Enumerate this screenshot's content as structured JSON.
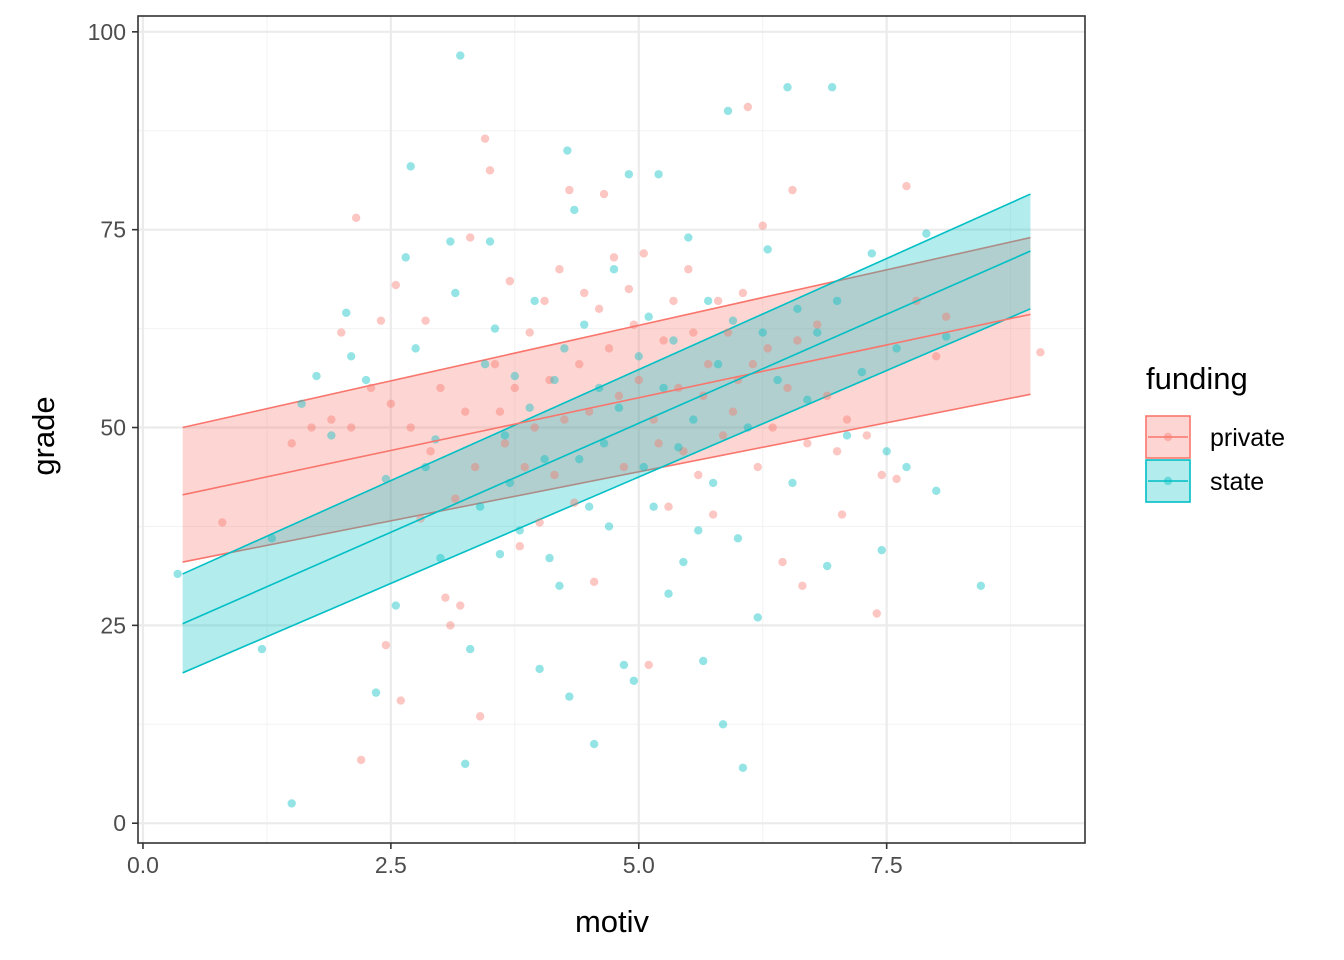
{
  "chart_data": {
    "type": "scatter",
    "xlabel": "motiv",
    "ylabel": "grade",
    "xlim": [
      -0.05,
      9.5
    ],
    "ylim": [
      -2.5,
      102
    ],
    "x_ticks": [
      0,
      2.5,
      5,
      7.5
    ],
    "x_tick_labels": [
      "0.0",
      "2.5",
      "5.0",
      "7.5"
    ],
    "y_ticks": [
      0,
      25,
      50,
      75,
      100
    ],
    "y_tick_labels": [
      "0",
      "25",
      "50",
      "75",
      "100"
    ],
    "grid": true,
    "legend": {
      "title": "funding",
      "position": "right"
    },
    "series": [
      {
        "name": "private",
        "color": "#F8766D",
        "points": [
          [
            0.8,
            38
          ],
          [
            1.5,
            48
          ],
          [
            1.7,
            50
          ],
          [
            1.9,
            51
          ],
          [
            2.0,
            62
          ],
          [
            2.1,
            50
          ],
          [
            2.15,
            76.5
          ],
          [
            2.2,
            8
          ],
          [
            2.3,
            55
          ],
          [
            2.4,
            63.5
          ],
          [
            2.45,
            22.5
          ],
          [
            2.5,
            53
          ],
          [
            2.55,
            68
          ],
          [
            2.6,
            15.5
          ],
          [
            2.7,
            50
          ],
          [
            2.8,
            38.5
          ],
          [
            2.85,
            63.5
          ],
          [
            2.9,
            47
          ],
          [
            3.0,
            55
          ],
          [
            3.05,
            28.5
          ],
          [
            3.1,
            25
          ],
          [
            3.15,
            41
          ],
          [
            3.2,
            27.5
          ],
          [
            3.25,
            52
          ],
          [
            3.3,
            74
          ],
          [
            3.35,
            45
          ],
          [
            3.4,
            13.5
          ],
          [
            3.45,
            86.5
          ],
          [
            3.5,
            82.5
          ],
          [
            3.55,
            58
          ],
          [
            3.6,
            52
          ],
          [
            3.65,
            48
          ],
          [
            3.7,
            68.5
          ],
          [
            3.75,
            55
          ],
          [
            3.8,
            35
          ],
          [
            3.85,
            45
          ],
          [
            3.9,
            62
          ],
          [
            3.95,
            50
          ],
          [
            4.0,
            38
          ],
          [
            4.05,
            66
          ],
          [
            4.1,
            56
          ],
          [
            4.15,
            44
          ],
          [
            4.2,
            70
          ],
          [
            4.25,
            51
          ],
          [
            4.3,
            80
          ],
          [
            4.35,
            40.5
          ],
          [
            4.4,
            58
          ],
          [
            4.45,
            67
          ],
          [
            4.5,
            52
          ],
          [
            4.55,
            30.5
          ],
          [
            4.6,
            65
          ],
          [
            4.65,
            79.5
          ],
          [
            4.7,
            60
          ],
          [
            4.75,
            71.5
          ],
          [
            4.8,
            54
          ],
          [
            4.85,
            45
          ],
          [
            4.9,
            67.5
          ],
          [
            4.95,
            63
          ],
          [
            5.0,
            56
          ],
          [
            5.05,
            72
          ],
          [
            5.1,
            20
          ],
          [
            5.15,
            51
          ],
          [
            5.2,
            48
          ],
          [
            5.25,
            61
          ],
          [
            5.3,
            40
          ],
          [
            5.35,
            66
          ],
          [
            5.4,
            55
          ],
          [
            5.45,
            47
          ],
          [
            5.5,
            70
          ],
          [
            5.55,
            62
          ],
          [
            5.6,
            44
          ],
          [
            5.65,
            54
          ],
          [
            5.7,
            58
          ],
          [
            5.75,
            39
          ],
          [
            5.8,
            66
          ],
          [
            5.85,
            49
          ],
          [
            5.9,
            62
          ],
          [
            5.95,
            52
          ],
          [
            6.0,
            56
          ],
          [
            6.05,
            67
          ],
          [
            6.1,
            90.5
          ],
          [
            6.15,
            58
          ],
          [
            6.2,
            45
          ],
          [
            6.25,
            75.5
          ],
          [
            6.3,
            60
          ],
          [
            6.35,
            50
          ],
          [
            6.45,
            33
          ],
          [
            6.5,
            55
          ],
          [
            6.55,
            80
          ],
          [
            6.6,
            61
          ],
          [
            6.65,
            30
          ],
          [
            6.7,
            48
          ],
          [
            6.8,
            63
          ],
          [
            6.9,
            54
          ],
          [
            7.0,
            47
          ],
          [
            7.05,
            39
          ],
          [
            7.1,
            51
          ],
          [
            7.3,
            49
          ],
          [
            7.4,
            26.5
          ],
          [
            7.45,
            44
          ],
          [
            7.6,
            43.5
          ],
          [
            7.7,
            80.5
          ],
          [
            7.8,
            66
          ],
          [
            8.0,
            59
          ],
          [
            8.1,
            64
          ],
          [
            9.05,
            59.5
          ]
        ],
        "fit": {
          "x": [
            0.4,
            8.95
          ],
          "y": [
            41.5,
            64.3
          ]
        },
        "ci": {
          "x": [
            0.4,
            8.95
          ],
          "lower": [
            33,
            54.2
          ],
          "upper": [
            50,
            74
          ]
        }
      },
      {
        "name": "state",
        "color": "#00BFC4",
        "points": [
          [
            0.35,
            31.5
          ],
          [
            1.2,
            22
          ],
          [
            1.3,
            36
          ],
          [
            1.5,
            2.5
          ],
          [
            1.6,
            53
          ],
          [
            1.75,
            56.5
          ],
          [
            1.9,
            49
          ],
          [
            2.05,
            64.5
          ],
          [
            2.1,
            59
          ],
          [
            2.25,
            56
          ],
          [
            2.35,
            16.5
          ],
          [
            2.45,
            43.5
          ],
          [
            2.55,
            27.5
          ],
          [
            2.65,
            71.5
          ],
          [
            2.7,
            83
          ],
          [
            2.75,
            60
          ],
          [
            2.85,
            45
          ],
          [
            2.95,
            48.5
          ],
          [
            3.0,
            33.5
          ],
          [
            3.1,
            73.5
          ],
          [
            3.15,
            67
          ],
          [
            3.2,
            97
          ],
          [
            3.25,
            7.5
          ],
          [
            3.3,
            22
          ],
          [
            3.4,
            40
          ],
          [
            3.45,
            58
          ],
          [
            3.5,
            73.5
          ],
          [
            3.55,
            62.5
          ],
          [
            3.6,
            34
          ],
          [
            3.65,
            49
          ],
          [
            3.7,
            43
          ],
          [
            3.75,
            56.5
          ],
          [
            3.8,
            37
          ],
          [
            3.9,
            52.5
          ],
          [
            3.95,
            66
          ],
          [
            4.0,
            19.5
          ],
          [
            4.05,
            46
          ],
          [
            4.1,
            33.5
          ],
          [
            4.15,
            56
          ],
          [
            4.2,
            30
          ],
          [
            4.25,
            60
          ],
          [
            4.28,
            85
          ],
          [
            4.3,
            16
          ],
          [
            4.35,
            77.5
          ],
          [
            4.4,
            46
          ],
          [
            4.45,
            63
          ],
          [
            4.5,
            40
          ],
          [
            4.55,
            10
          ],
          [
            4.6,
            55
          ],
          [
            4.65,
            48
          ],
          [
            4.7,
            37.5
          ],
          [
            4.75,
            70
          ],
          [
            4.8,
            52.5
          ],
          [
            4.85,
            20
          ],
          [
            4.9,
            82
          ],
          [
            4.95,
            18
          ],
          [
            5.0,
            59
          ],
          [
            5.05,
            45
          ],
          [
            5.1,
            64
          ],
          [
            5.15,
            40
          ],
          [
            5.2,
            82
          ],
          [
            5.25,
            55
          ],
          [
            5.3,
            29
          ],
          [
            5.35,
            61
          ],
          [
            5.4,
            47.5
          ],
          [
            5.45,
            33
          ],
          [
            5.5,
            74
          ],
          [
            5.55,
            51
          ],
          [
            5.6,
            37
          ],
          [
            5.65,
            20.5
          ],
          [
            5.7,
            66
          ],
          [
            5.75,
            43
          ],
          [
            5.8,
            58
          ],
          [
            5.85,
            12.5
          ],
          [
            5.9,
            90
          ],
          [
            5.95,
            63.5
          ],
          [
            6.0,
            36
          ],
          [
            6.05,
            7
          ],
          [
            6.1,
            50
          ],
          [
            6.2,
            26
          ],
          [
            6.25,
            62
          ],
          [
            6.3,
            72.5
          ],
          [
            6.4,
            56
          ],
          [
            6.5,
            93
          ],
          [
            6.55,
            43
          ],
          [
            6.6,
            65
          ],
          [
            6.7,
            53.5
          ],
          [
            6.8,
            62
          ],
          [
            6.9,
            32.5
          ],
          [
            6.95,
            93
          ],
          [
            7.0,
            66
          ],
          [
            7.1,
            49
          ],
          [
            7.25,
            57
          ],
          [
            7.35,
            72
          ],
          [
            7.45,
            34.5
          ],
          [
            7.5,
            47
          ],
          [
            7.6,
            60
          ],
          [
            7.7,
            45
          ],
          [
            7.9,
            74.5
          ],
          [
            8.0,
            42
          ],
          [
            8.1,
            61.5
          ],
          [
            8.45,
            30
          ]
        ],
        "fit": {
          "x": [
            0.4,
            8.95
          ],
          "y": [
            25.2,
            72.3
          ]
        },
        "ci": {
          "x": [
            0.4,
            8.95
          ],
          "lower": [
            19,
            65
          ],
          "upper": [
            31.5,
            79.5
          ]
        }
      }
    ]
  }
}
